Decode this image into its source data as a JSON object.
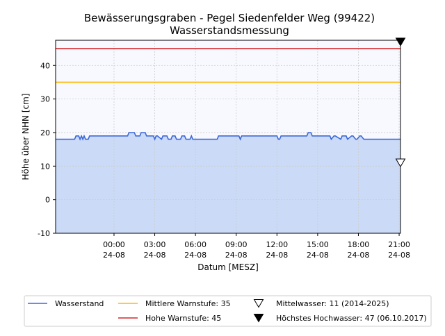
{
  "chart_data": {
    "type": "area",
    "title": "Bewässerungsgraben - Pegel Siedenfelder Weg (99422)",
    "subtitle": "Wasserstandsmessung",
    "xlabel": "Datum [MESZ]",
    "ylabel": "Höhe über NHN [cm]",
    "xlim_hours": [
      -4.3,
      21.1
    ],
    "ylim": [
      -10,
      47.5
    ],
    "yticks": [
      -10,
      0,
      10,
      20,
      30,
      40
    ],
    "xticks": [
      {
        "h": 0,
        "time": "00:00",
        "date": "24-08"
      },
      {
        "h": 3,
        "time": "03:00",
        "date": "24-08"
      },
      {
        "h": 6,
        "time": "06:00",
        "date": "24-08"
      },
      {
        "h": 9,
        "time": "09:00",
        "date": "24-08"
      },
      {
        "h": 12,
        "time": "12:00",
        "date": "24-08"
      },
      {
        "h": 15,
        "time": "15:00",
        "date": "24-08"
      },
      {
        "h": 18,
        "time": "18:00",
        "date": "24-08"
      },
      {
        "h": 21,
        "time": "21:00",
        "date": "24-08"
      }
    ],
    "grid": true,
    "legend_position": "bottom",
    "series": [
      {
        "name": "Wasserstand",
        "color": "#3a68d8",
        "fill": "#cbdaf7",
        "x": [
          -4.3,
          -2.9,
          -2.8,
          -2.6,
          -2.5,
          -2.4,
          -2.3,
          -2.2,
          -2.1,
          -1.9,
          -1.8,
          -1.5,
          1.0,
          1.1,
          1.5,
          1.6,
          1.9,
          2.0,
          2.3,
          2.4,
          2.9,
          3.0,
          3.1,
          3.2,
          3.5,
          3.6,
          3.9,
          4.0,
          4.2,
          4.3,
          4.5,
          4.6,
          4.9,
          5.0,
          5.2,
          5.3,
          5.6,
          5.7,
          5.8,
          7.6,
          7.7,
          9.2,
          9.3,
          9.4,
          12.0,
          12.1,
          12.2,
          12.3,
          14.2,
          14.3,
          14.5,
          14.6,
          15.9,
          16.0,
          16.2,
          16.3,
          16.7,
          16.8,
          17.1,
          17.2,
          17.5,
          17.6,
          17.8,
          17.9,
          18.1,
          18.2,
          18.4,
          18.5,
          21.1
        ],
        "y": [
          18,
          18,
          19,
          19,
          18,
          19,
          18,
          19,
          18,
          18,
          19,
          19,
          19,
          20,
          20,
          19,
          19,
          20,
          20,
          19,
          19,
          18,
          19,
          19,
          18,
          19,
          19,
          18,
          18,
          19,
          19,
          18,
          18,
          19,
          19,
          18,
          18,
          19,
          18,
          18,
          19,
          19,
          18,
          19,
          19,
          18,
          18,
          19,
          19,
          20,
          20,
          19,
          19,
          18,
          19,
          19,
          18,
          19,
          19,
          18,
          19,
          19,
          18,
          18,
          19,
          19,
          18,
          18,
          18
        ]
      },
      {
        "name": "Mittlere Warnstufe: 35",
        "color": "#ffb800",
        "value": 35
      },
      {
        "name": "Hohe Warnstufe: 45",
        "color": "#d62728",
        "value": 45
      }
    ],
    "markers": [
      {
        "name": "Mittelwasser: 11 (2014-2025)",
        "value": 11,
        "marker": "open-triangle-down"
      },
      {
        "name": "Höchstes Hochwasser: 47 (06.10.2017)",
        "value": 47,
        "marker": "filled-triangle-down"
      }
    ],
    "colors": {
      "plot_background": "#f8f9fe",
      "grid": "#cccccc"
    }
  }
}
